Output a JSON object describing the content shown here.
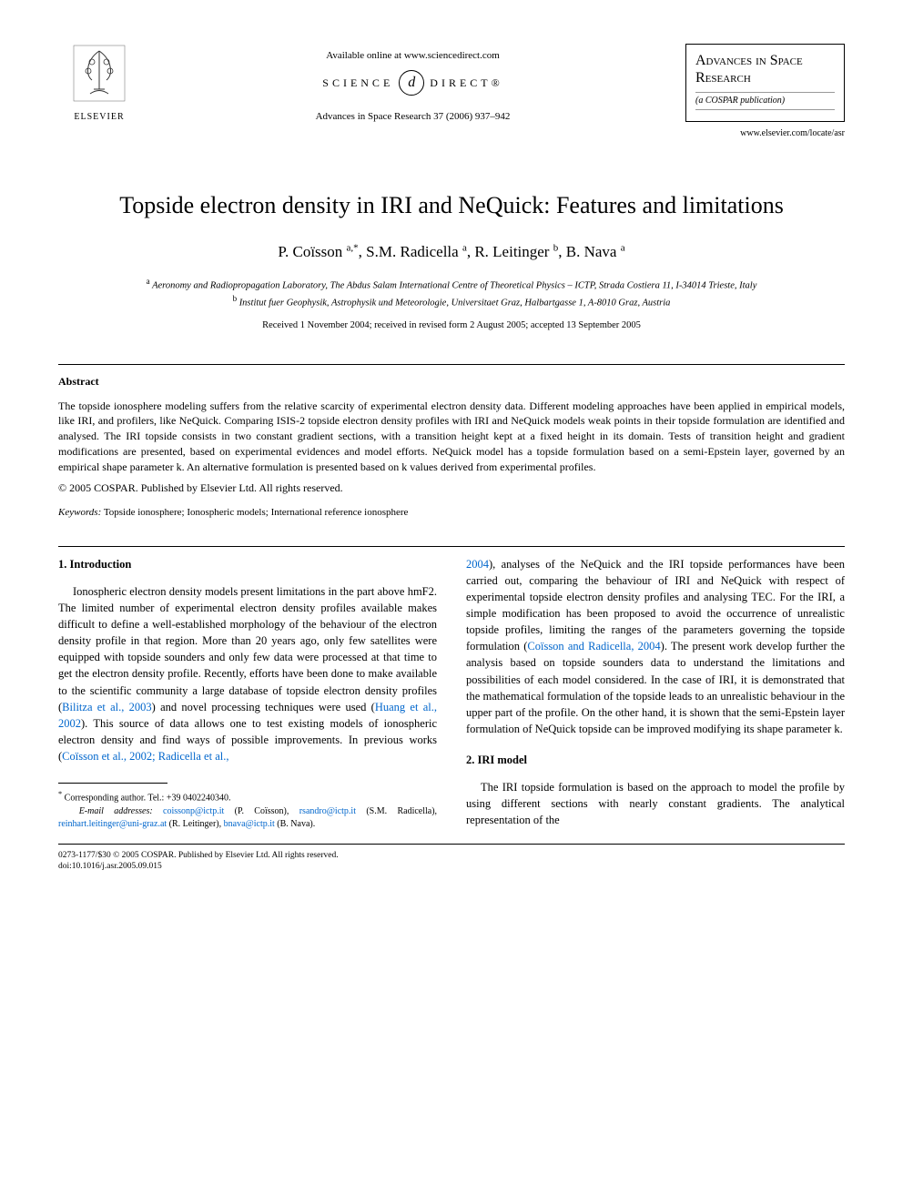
{
  "header": {
    "elsevier_label": "ELSEVIER",
    "available_online": "Available online at www.sciencedirect.com",
    "science_direct_left": "SCIENCE",
    "science_direct_right": "DIRECT®",
    "sd_icon_glyph": "d",
    "journal_ref": "Advances in Space Research 37 (2006) 937–942",
    "journal_box_title": "Advances in Space Research",
    "journal_box_sub": "(a COSPAR publication)",
    "journal_url": "www.elsevier.com/locate/asr"
  },
  "article": {
    "title": "Topside electron density in IRI and NeQuick: Features and limitations",
    "authors_html": "P. Coïsson <sup>a,*</sup>, S.M. Radicella <sup>a</sup>, R. Leitinger <sup>b</sup>, B. Nava <sup>a</sup>",
    "affil_a": "Aeronomy and Radiopropagation Laboratory, The Abdus Salam International Centre of Theoretical Physics – ICTP, Strada Costiera 11, I-34014 Trieste, Italy",
    "affil_b": "Institut fuer Geophysik, Astrophysik und Meteorologie, Universitaet Graz, Halbartgasse 1, A-8010 Graz, Austria",
    "dates": "Received 1 November 2004; received in revised form 2 August 2005; accepted 13 September 2005"
  },
  "abstract": {
    "heading": "Abstract",
    "text": "The topside ionosphere modeling suffers from the relative scarcity of experimental electron density data. Different modeling approaches have been applied in empirical models, like IRI, and profilers, like NeQuick. Comparing ISIS-2 topside electron density profiles with IRI and NeQuick models weak points in their topside formulation are identified and analysed. The IRI topside consists in two constant gradient sections, with a transition height kept at a fixed height in its domain. Tests of transition height and gradient modifications are presented, based on experimental evidences and model efforts. NeQuick model has a topside formulation based on a semi-Epstein layer, governed by an empirical shape parameter k. An alternative formulation is presented based on k values derived from experimental profiles.",
    "copyright": "© 2005 COSPAR. Published by Elsevier Ltd. All rights reserved."
  },
  "keywords": {
    "label": "Keywords:",
    "text": "Topside ionosphere; Ionospheric models; International reference ionosphere"
  },
  "sections": {
    "s1_heading": "1. Introduction",
    "s1_p1_a": "Ionospheric electron density models present limitations in the part above hmF2. The limited number of experimental electron density profiles available makes difficult to define a well-established morphology of the behaviour of the electron density profile in that region. More than 20 years ago, only few satellites were equipped with topside sounders and only few data were processed at that time to get the electron density profile. Recently, efforts have been done to make available to the scientific community a large database of topside electron density profiles (",
    "s1_link1": "Bilitza et al., 2003",
    "s1_p1_b": ") and novel processing techniques were used (",
    "s1_link2": "Huang et al., 2002",
    "s1_p1_c": "). This source of data allows one to test existing models of ionospheric electron density and find ways of possible improvements. In previous works (",
    "s1_link3": "Coïsson et al., 2002; Radicella et al.,",
    "s1_link3b": "2004",
    "s1_p2_a": "), analyses of the NeQuick and the IRI topside performances have been carried out, comparing the behaviour of IRI and NeQuick with respect of experimental topside electron density profiles and analysing TEC. For the IRI, a simple modification has been proposed to avoid the occurrence of unrealistic topside profiles, limiting the ranges of the parameters governing the topside formulation (",
    "s1_link4": "Coïsson and Radicella, 2004",
    "s1_p2_b": "). The present work develop further the analysis based on topside sounders data to understand the limitations and possibilities of each model considered. In the case of IRI, it is demonstrated that the mathematical formulation of the topside leads to an unrealistic behaviour in the upper part of the profile. On the other hand, it is shown that the semi-Epstein layer formulation of NeQuick topside can be improved modifying its shape parameter k.",
    "s2_heading": "2. IRI model",
    "s2_p1": "The IRI topside formulation is based on the approach to model the profile by using different sections with nearly constant gradients. The analytical representation of the"
  },
  "footnotes": {
    "corr": "Corresponding author. Tel.: +39 0402240340.",
    "email_label": "E-mail addresses:",
    "e1": "coissonp@ictp.it",
    "n1": "(P. Coïsson),",
    "e2": "rsandro@ictp.it",
    "n2": "(S.M. Radicella),",
    "e3": "reinhart.leitinger@uni-graz.at",
    "n3": "(R. Leitinger),",
    "e4": "bnava@ictp.it",
    "n4": "(B. Nava)."
  },
  "bottom": {
    "issn": "0273-1177/$30 © 2005 COSPAR. Published by Elsevier Ltd. All rights reserved.",
    "doi": "doi:10.1016/j.asr.2005.09.015"
  },
  "colors": {
    "text": "#000000",
    "link": "#0066cc",
    "background": "#ffffff"
  }
}
